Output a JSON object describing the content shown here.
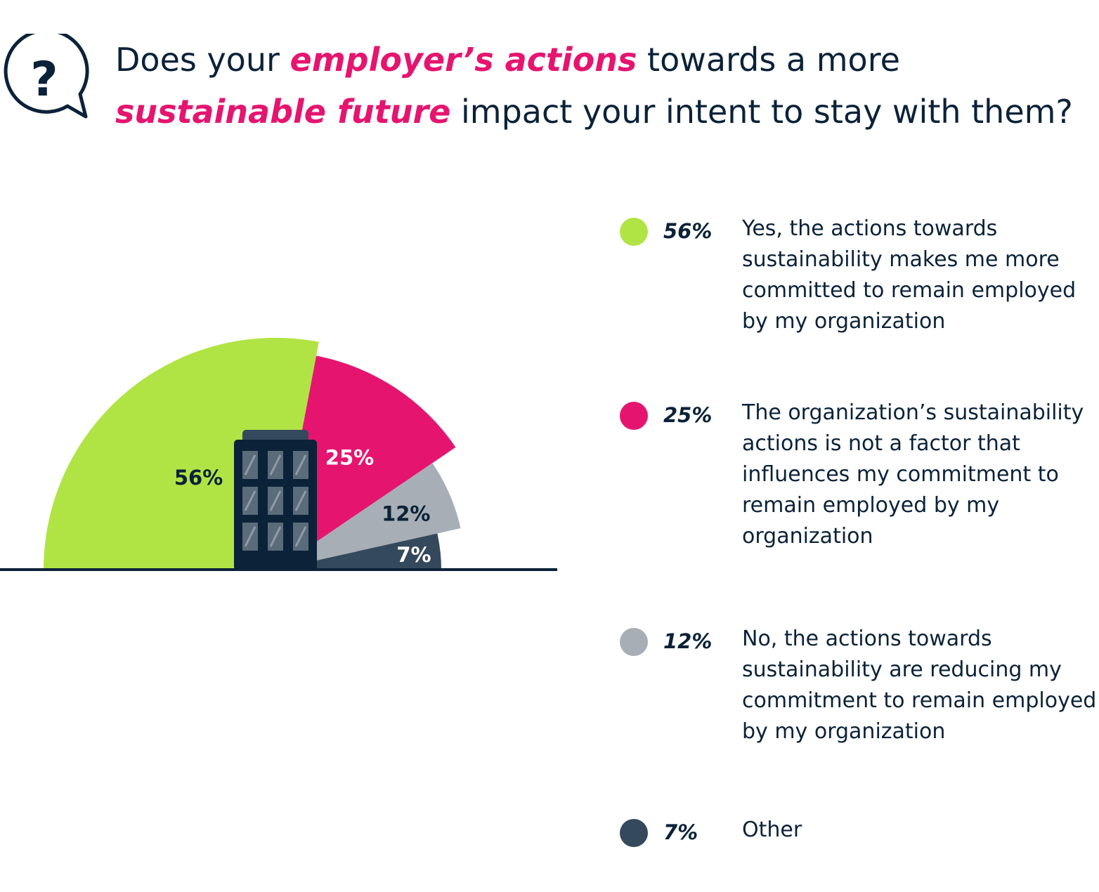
{
  "title": {
    "p1": "Does your ",
    "h1": "employer’s actions",
    "p2": " towards a more ",
    "h2": "sustainable future",
    "p3": " impact your intent to stay with them?"
  },
  "icon": "question-bubble-icon",
  "colors": {
    "accent": "#e5156f",
    "green": "#b0e444",
    "pink": "#e5156f",
    "gray": "#a7aeb5",
    "dark": "#34495b",
    "navy": "#0b2238"
  },
  "chart_data": {
    "type": "pie",
    "title": "",
    "slices": [
      {
        "label": "56%",
        "value": 56,
        "color": "#b0e444",
        "legend": "Yes, the actions towards sustainability makes me more committed to remain employed by my organization"
      },
      {
        "label": "25%",
        "value": 25,
        "color": "#e5156f",
        "legend": "The organization’s sustainability actions is not a factor that influences my commitment to remain employed by my organization"
      },
      {
        "label": "12%",
        "value": 12,
        "color": "#a7aeb5",
        "legend": "No, the actions towards sustainability are reducing my commitment to remain employed by my organization"
      },
      {
        "label": "7%",
        "value": 7,
        "color": "#34495b",
        "legend": "Other"
      }
    ],
    "legend_position": "right"
  }
}
